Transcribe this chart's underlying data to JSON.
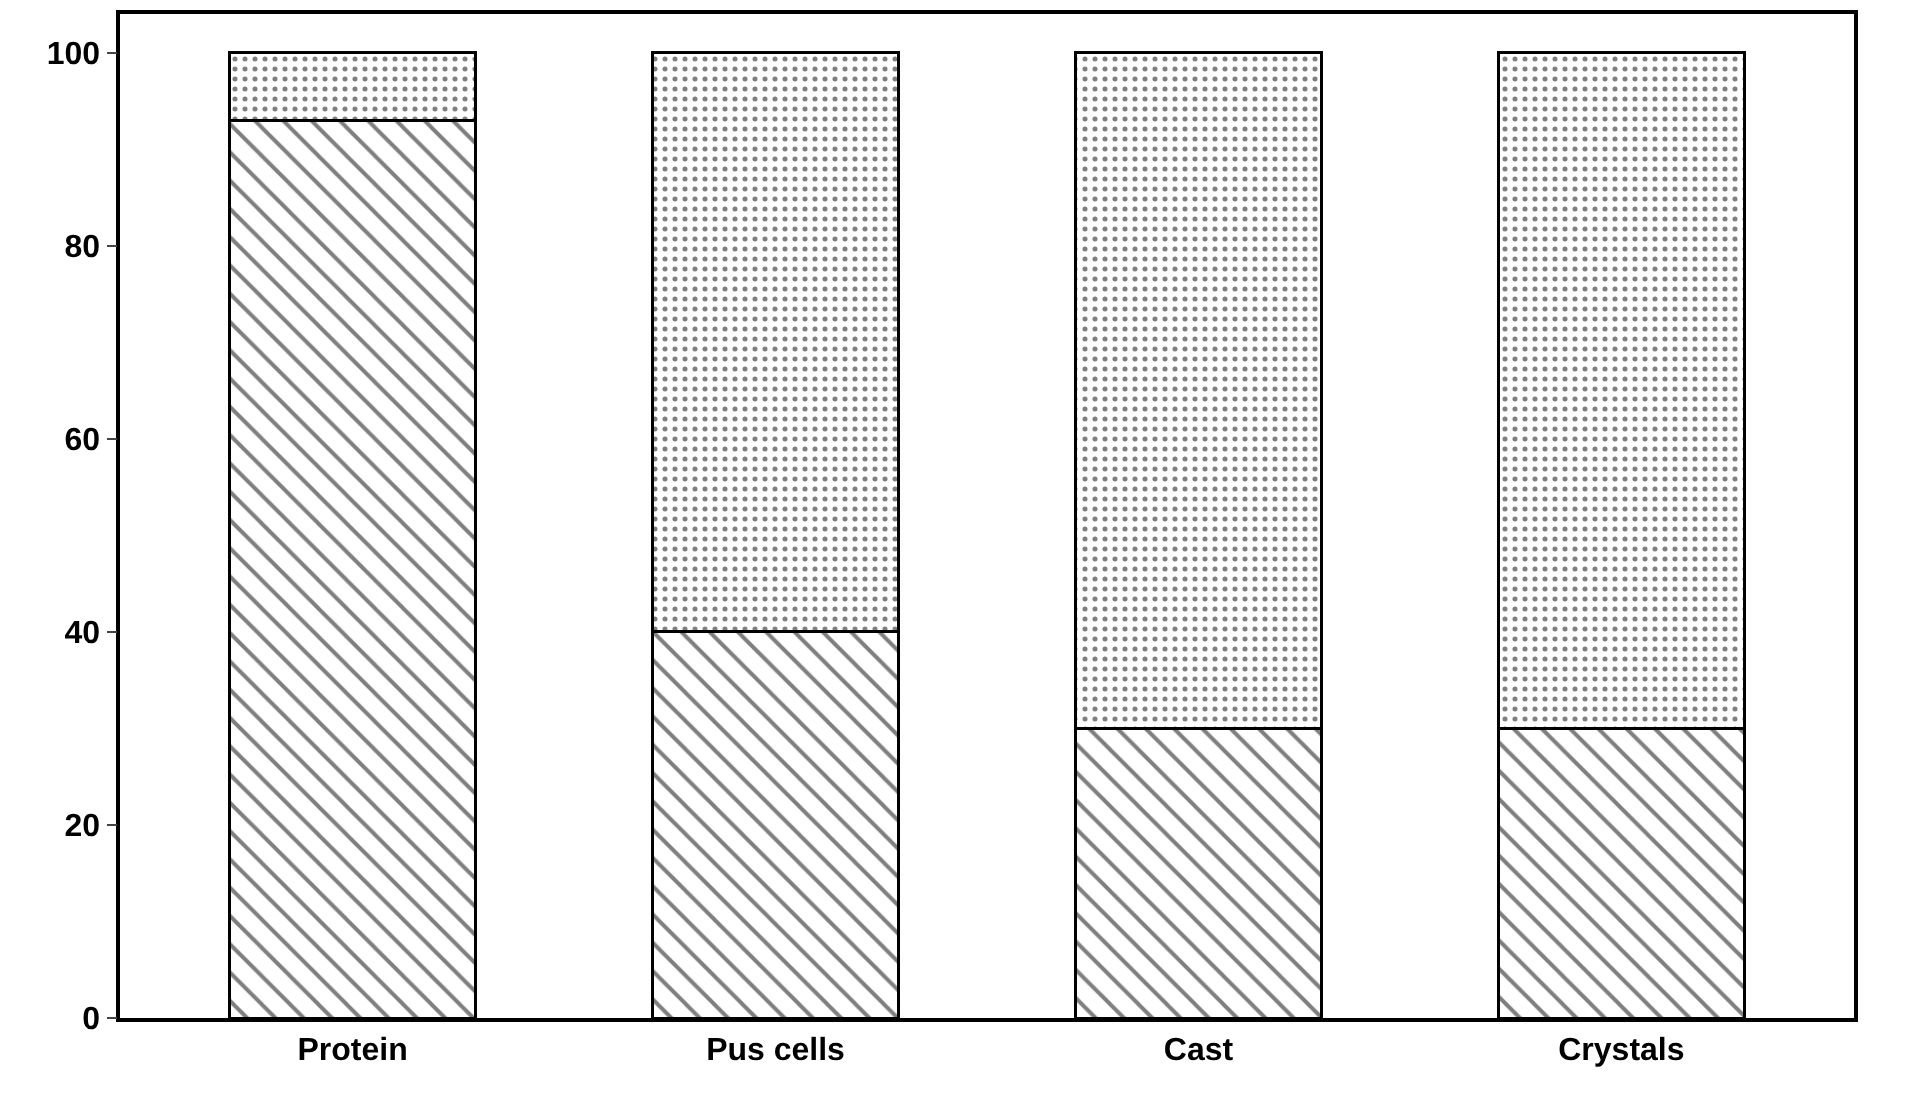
{
  "chart_data": {
    "type": "bar",
    "stacked": true,
    "categories": [
      "Protein",
      "Pus cells",
      "Cast",
      "Crystals"
    ],
    "series": [
      {
        "color": "#000000",
        "values": [
          93,
          40,
          30,
          30
        ]
      },
      {
        "color": "#000000",
        "values": [
          7,
          60,
          70,
          70
        ]
      }
    ],
    "ylim": [
      0,
      104
    ],
    "yticks": [
      0,
      20,
      40,
      60,
      80,
      100
    ]
  }
}
